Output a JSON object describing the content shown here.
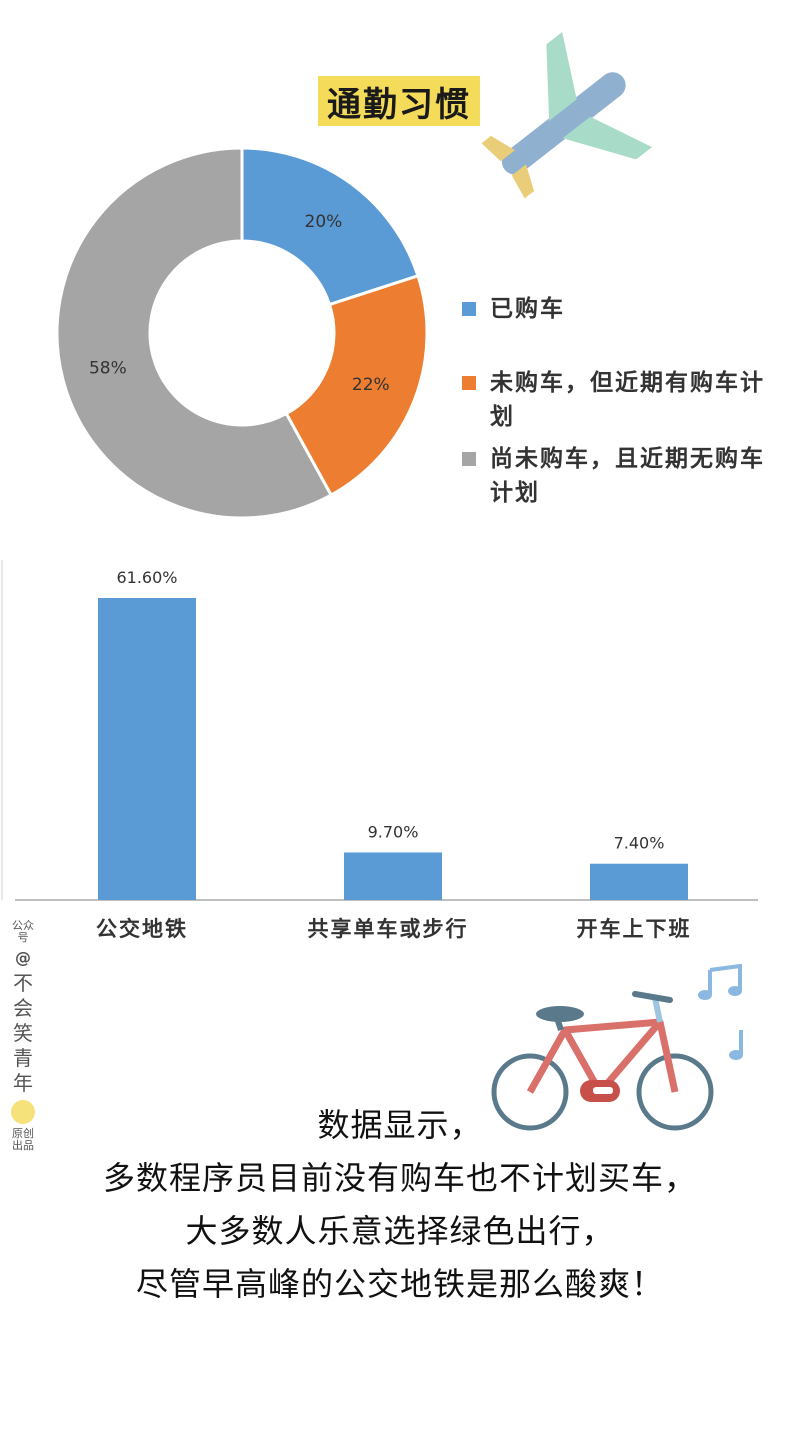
{
  "title": "通勤习惯",
  "colors": {
    "blue": "#5b9bd5",
    "orange": "#ed7d31",
    "gray": "#a5a5a5",
    "badge": "#f4dc5a"
  },
  "chart_data": [
    {
      "type": "pie",
      "variant": "donut",
      "labels": [
        "已购车",
        "未购车，但近期有购车计划",
        "尚未购车，且近期无购车计划"
      ],
      "values": [
        20,
        22,
        58
      ],
      "value_labels": [
        "20%",
        "22%",
        "58%"
      ],
      "legend_position": "right"
    },
    {
      "type": "bar",
      "categories": [
        "公交地铁",
        "共享单车或步行",
        "开车上下班"
      ],
      "values": [
        61.6,
        9.7,
        7.4
      ],
      "value_labels": [
        "61.60%",
        "9.70%",
        "7.40%"
      ],
      "ylim": [
        0,
        65
      ]
    }
  ],
  "watermark": {
    "prefix": "公众号",
    "at": "@",
    "name": "不会笑青年",
    "suffix": "原创出品"
  },
  "caption": [
    "数据显示，",
    "多数程序员目前没有购车也不计划买车，",
    "大多数人乐意选择绿色出行，",
    "尽管早高峰的公交地铁是那么酸爽！"
  ],
  "icons": [
    "airplane-illustration",
    "bicycle-illustration",
    "music-note-icon"
  ]
}
